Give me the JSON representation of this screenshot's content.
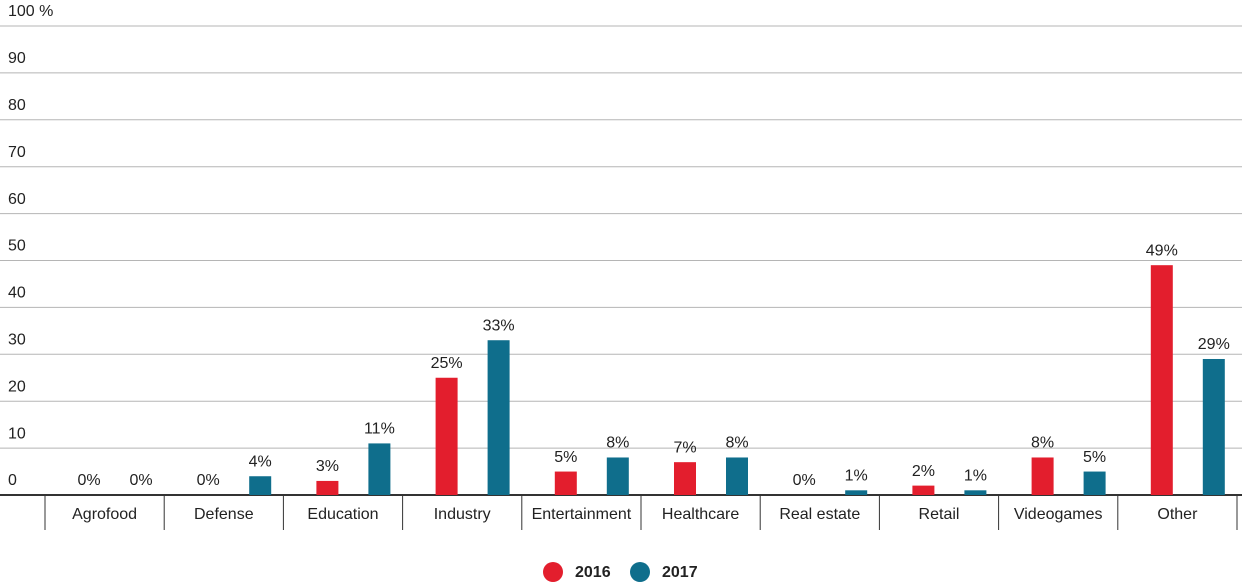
{
  "chart_data": {
    "type": "bar",
    "categories": [
      "Agrofood",
      "Defense",
      "Education",
      "Industry",
      "Entertainment",
      "Healthcare",
      "Real estate",
      "Retail",
      "Videogames",
      "Other"
    ],
    "series": [
      {
        "name": "2016",
        "color": "#e31e2d",
        "values": [
          0,
          0,
          3,
          25,
          5,
          7,
          0,
          2,
          8,
          49
        ],
        "value_labels": [
          "0%",
          "0%",
          "3%",
          "25%",
          "5%",
          "7%",
          "0%",
          "2%",
          "8%",
          "49%"
        ]
      },
      {
        "name": "2017",
        "color": "#0f6e8c",
        "values": [
          0,
          4,
          11,
          33,
          8,
          8,
          1,
          1,
          5,
          29
        ],
        "value_labels": [
          "0%",
          "4%",
          "11%",
          "33%",
          "8%",
          "8%",
          "1%",
          "1%",
          "5%",
          "29%"
        ]
      }
    ],
    "ylim": [
      0,
      100
    ],
    "yticks": [
      0,
      10,
      20,
      30,
      40,
      50,
      60,
      70,
      80,
      90,
      {
        "value": 100,
        "label": "100 %"
      }
    ],
    "grid": true
  }
}
